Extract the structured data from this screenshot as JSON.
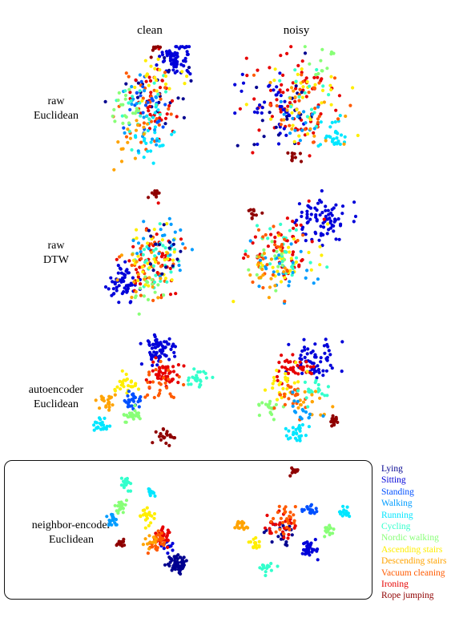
{
  "columns": [
    "clean",
    "noisy"
  ],
  "rows": [
    {
      "line1": "raw",
      "line2": "Euclidean"
    },
    {
      "line1": "raw",
      "line2": "DTW"
    },
    {
      "line1": "autoencoder",
      "line2": "Euclidean"
    },
    {
      "line1": "neighbor-encoder",
      "line2": "Euclidean"
    }
  ],
  "legend": [
    {
      "label": "Lying",
      "color": "#00008f"
    },
    {
      "label": "Sitting",
      "color": "#0000d9"
    },
    {
      "label": "Standing",
      "color": "#0050ff"
    },
    {
      "label": "Walking",
      "color": "#009cff"
    },
    {
      "label": "Running",
      "color": "#00e6ff"
    },
    {
      "label": "Cycling",
      "color": "#33ffcc"
    },
    {
      "label": "Nordic walking",
      "color": "#88ff77"
    },
    {
      "label": "Ascending stairs",
      "color": "#ffee00"
    },
    {
      "label": "Descending stairs",
      "color": "#ffa300"
    },
    {
      "label": "Vacuum cleaning",
      "color": "#ff5a00"
    },
    {
      "label": "Ironing",
      "color": "#e60000"
    },
    {
      "label": "Rope jumping",
      "color": "#8f0000"
    }
  ],
  "chart_data": {
    "type": "scatter",
    "description_of_encoding": "Grid of 2D embedding scatter plots; each point is a time series colored by activity class. Axes unlabeled and untick-marked.",
    "grid": false,
    "legend_position": "right",
    "highlighted_row": "neighbor-encoder Euclidean",
    "panels": [
      {
        "row": "raw Euclidean",
        "column": "clean",
        "clusters": [
          {
            "cls": 1,
            "cx": 0.7,
            "cy": 0.12,
            "r": 0.16,
            "n": 70
          },
          {
            "cls": 0,
            "cx": 0.5,
            "cy": 0.4,
            "r": 0.3,
            "n": 25
          },
          {
            "cls": 10,
            "cx": 0.48,
            "cy": 0.45,
            "r": 0.3,
            "n": 40
          },
          {
            "cls": 9,
            "cx": 0.4,
            "cy": 0.5,
            "r": 0.32,
            "n": 30
          },
          {
            "cls": 4,
            "cx": 0.5,
            "cy": 0.72,
            "r": 0.2,
            "n": 30
          },
          {
            "cls": 2,
            "cx": 0.45,
            "cy": 0.45,
            "r": 0.3,
            "n": 20
          },
          {
            "cls": 3,
            "cx": 0.35,
            "cy": 0.55,
            "r": 0.3,
            "n": 20
          },
          {
            "cls": 5,
            "cx": 0.35,
            "cy": 0.45,
            "r": 0.28,
            "n": 20
          },
          {
            "cls": 6,
            "cx": 0.25,
            "cy": 0.5,
            "r": 0.2,
            "n": 20
          },
          {
            "cls": 7,
            "cx": 0.55,
            "cy": 0.3,
            "r": 0.25,
            "n": 20
          },
          {
            "cls": 8,
            "cx": 0.3,
            "cy": 0.75,
            "r": 0.22,
            "n": 15
          },
          {
            "cls": 11,
            "cx": 0.5,
            "cy": 0.05,
            "r": 0.06,
            "n": 8
          }
        ]
      },
      {
        "row": "raw Euclidean",
        "column": "noisy",
        "clusters": [
          {
            "cls": 10,
            "cx": 0.5,
            "cy": 0.45,
            "r": 0.4,
            "n": 70
          },
          {
            "cls": 1,
            "cx": 0.3,
            "cy": 0.5,
            "r": 0.3,
            "n": 40
          },
          {
            "cls": 0,
            "cx": 0.4,
            "cy": 0.55,
            "r": 0.3,
            "n": 20
          },
          {
            "cls": 4,
            "cx": 0.8,
            "cy": 0.72,
            "r": 0.14,
            "n": 30
          },
          {
            "cls": 7,
            "cx": 0.6,
            "cy": 0.45,
            "r": 0.35,
            "n": 30
          },
          {
            "cls": 9,
            "cx": 0.5,
            "cy": 0.5,
            "r": 0.38,
            "n": 25
          },
          {
            "cls": 5,
            "cx": 0.55,
            "cy": 0.4,
            "r": 0.3,
            "n": 15
          },
          {
            "cls": 3,
            "cx": 0.5,
            "cy": 0.6,
            "r": 0.3,
            "n": 15
          },
          {
            "cls": 6,
            "cx": 0.65,
            "cy": 0.1,
            "r": 0.15,
            "n": 12
          },
          {
            "cls": 8,
            "cx": 0.55,
            "cy": 0.5,
            "r": 0.38,
            "n": 15
          },
          {
            "cls": 11,
            "cx": 0.5,
            "cy": 0.88,
            "r": 0.08,
            "n": 10
          }
        ]
      },
      {
        "row": "raw DTW",
        "column": "clean",
        "clusters": [
          {
            "cls": 1,
            "cx": 0.2,
            "cy": 0.75,
            "r": 0.16,
            "n": 60
          },
          {
            "cls": 10,
            "cx": 0.5,
            "cy": 0.55,
            "r": 0.3,
            "n": 45
          },
          {
            "cls": 9,
            "cx": 0.45,
            "cy": 0.6,
            "r": 0.3,
            "n": 30
          },
          {
            "cls": 5,
            "cx": 0.55,
            "cy": 0.55,
            "r": 0.28,
            "n": 30
          },
          {
            "cls": 7,
            "cx": 0.5,
            "cy": 0.55,
            "r": 0.3,
            "n": 30
          },
          {
            "cls": 3,
            "cx": 0.6,
            "cy": 0.45,
            "r": 0.3,
            "n": 25
          },
          {
            "cls": 0,
            "cx": 0.6,
            "cy": 0.5,
            "r": 0.25,
            "n": 15
          },
          {
            "cls": 6,
            "cx": 0.4,
            "cy": 0.75,
            "r": 0.2,
            "n": 15
          },
          {
            "cls": 8,
            "cx": 0.45,
            "cy": 0.65,
            "r": 0.28,
            "n": 15
          },
          {
            "cls": 11,
            "cx": 0.5,
            "cy": 0.04,
            "r": 0.05,
            "n": 10
          }
        ]
      },
      {
        "row": "raw DTW",
        "column": "noisy",
        "clusters": [
          {
            "cls": 1,
            "cx": 0.72,
            "cy": 0.25,
            "r": 0.22,
            "n": 80
          },
          {
            "cls": 10,
            "cx": 0.4,
            "cy": 0.45,
            "r": 0.32,
            "n": 45
          },
          {
            "cls": 7,
            "cx": 0.45,
            "cy": 0.6,
            "r": 0.32,
            "n": 35
          },
          {
            "cls": 5,
            "cx": 0.45,
            "cy": 0.5,
            "r": 0.3,
            "n": 25
          },
          {
            "cls": 3,
            "cx": 0.4,
            "cy": 0.7,
            "r": 0.3,
            "n": 25
          },
          {
            "cls": 9,
            "cx": 0.35,
            "cy": 0.55,
            "r": 0.3,
            "n": 25
          },
          {
            "cls": 6,
            "cx": 0.3,
            "cy": 0.6,
            "r": 0.25,
            "n": 15
          },
          {
            "cls": 8,
            "cx": 0.3,
            "cy": 0.7,
            "r": 0.2,
            "n": 15
          },
          {
            "cls": 11,
            "cx": 0.2,
            "cy": 0.2,
            "r": 0.08,
            "n": 10
          }
        ]
      },
      {
        "row": "autoencoder Euclidean",
        "column": "clean",
        "clusters": [
          {
            "cls": 1,
            "cx": 0.55,
            "cy": 0.15,
            "r": 0.14,
            "n": 70
          },
          {
            "cls": 10,
            "cx": 0.6,
            "cy": 0.35,
            "r": 0.12,
            "n": 45
          },
          {
            "cls": 9,
            "cx": 0.55,
            "cy": 0.45,
            "r": 0.16,
            "n": 25
          },
          {
            "cls": 5,
            "cx": 0.85,
            "cy": 0.4,
            "r": 0.08,
            "n": 25
          },
          {
            "cls": 7,
            "cx": 0.3,
            "cy": 0.45,
            "r": 0.1,
            "n": 25
          },
          {
            "cls": 2,
            "cx": 0.35,
            "cy": 0.58,
            "r": 0.08,
            "n": 25
          },
          {
            "cls": 6,
            "cx": 0.35,
            "cy": 0.72,
            "r": 0.08,
            "n": 25
          },
          {
            "cls": 4,
            "cx": 0.1,
            "cy": 0.8,
            "r": 0.08,
            "n": 25
          },
          {
            "cls": 8,
            "cx": 0.15,
            "cy": 0.6,
            "r": 0.08,
            "n": 20
          },
          {
            "cls": 11,
            "cx": 0.6,
            "cy": 0.9,
            "r": 0.07,
            "n": 20
          }
        ]
      },
      {
        "row": "autoencoder Euclidean",
        "column": "noisy",
        "clusters": [
          {
            "cls": 1,
            "cx": 0.65,
            "cy": 0.2,
            "r": 0.22,
            "n": 60
          },
          {
            "cls": 10,
            "cx": 0.5,
            "cy": 0.3,
            "r": 0.16,
            "n": 40
          },
          {
            "cls": 7,
            "cx": 0.4,
            "cy": 0.4,
            "r": 0.2,
            "n": 25
          },
          {
            "cls": 6,
            "cx": 0.25,
            "cy": 0.65,
            "r": 0.1,
            "n": 20
          },
          {
            "cls": 4,
            "cx": 0.5,
            "cy": 0.85,
            "r": 0.1,
            "n": 25
          },
          {
            "cls": 9,
            "cx": 0.45,
            "cy": 0.55,
            "r": 0.18,
            "n": 25
          },
          {
            "cls": 5,
            "cx": 0.65,
            "cy": 0.5,
            "r": 0.15,
            "n": 20
          },
          {
            "cls": 8,
            "cx": 0.6,
            "cy": 0.6,
            "r": 0.15,
            "n": 15
          },
          {
            "cls": 3,
            "cx": 0.55,
            "cy": 0.65,
            "r": 0.15,
            "n": 15
          },
          {
            "cls": 11,
            "cx": 0.82,
            "cy": 0.75,
            "r": 0.06,
            "n": 18
          }
        ]
      },
      {
        "row": "neighbor-encoder Euclidean",
        "column": "clean",
        "clusters": [
          {
            "cls": 0,
            "cx": 0.75,
            "cy": 0.8,
            "r": 0.1,
            "n": 60
          },
          {
            "cls": 1,
            "cx": 0.65,
            "cy": 0.65,
            "r": 0.08,
            "n": 15
          },
          {
            "cls": 10,
            "cx": 0.6,
            "cy": 0.55,
            "r": 0.1,
            "n": 30
          },
          {
            "cls": 9,
            "cx": 0.55,
            "cy": 0.6,
            "r": 0.1,
            "n": 25
          },
          {
            "cls": 7,
            "cx": 0.45,
            "cy": 0.4,
            "r": 0.1,
            "n": 20
          },
          {
            "cls": 6,
            "cx": 0.2,
            "cy": 0.3,
            "r": 0.06,
            "n": 20
          },
          {
            "cls": 3,
            "cx": 0.12,
            "cy": 0.42,
            "r": 0.06,
            "n": 20
          },
          {
            "cls": 5,
            "cx": 0.25,
            "cy": 0.1,
            "r": 0.06,
            "n": 20
          },
          {
            "cls": 4,
            "cx": 0.48,
            "cy": 0.18,
            "r": 0.04,
            "n": 15
          },
          {
            "cls": 11,
            "cx": 0.2,
            "cy": 0.62,
            "r": 0.04,
            "n": 18
          },
          {
            "cls": 8,
            "cx": 0.5,
            "cy": 0.6,
            "r": 0.08,
            "n": 12
          }
        ]
      },
      {
        "row": "neighbor-encoder Euclidean",
        "column": "noisy",
        "clusters": [
          {
            "cls": 1,
            "cx": 0.6,
            "cy": 0.7,
            "r": 0.08,
            "n": 30
          },
          {
            "cls": 0,
            "cx": 0.4,
            "cy": 0.55,
            "r": 0.12,
            "n": 20
          },
          {
            "cls": 10,
            "cx": 0.38,
            "cy": 0.5,
            "r": 0.14,
            "n": 30
          },
          {
            "cls": 9,
            "cx": 0.4,
            "cy": 0.45,
            "r": 0.14,
            "n": 25
          },
          {
            "cls": 8,
            "cx": 0.1,
            "cy": 0.5,
            "r": 0.06,
            "n": 20
          },
          {
            "cls": 7,
            "cx": 0.2,
            "cy": 0.65,
            "r": 0.06,
            "n": 15
          },
          {
            "cls": 2,
            "cx": 0.6,
            "cy": 0.38,
            "r": 0.06,
            "n": 20
          },
          {
            "cls": 4,
            "cx": 0.85,
            "cy": 0.4,
            "r": 0.05,
            "n": 15
          },
          {
            "cls": 6,
            "cx": 0.75,
            "cy": 0.55,
            "r": 0.06,
            "n": 15
          },
          {
            "cls": 5,
            "cx": 0.28,
            "cy": 0.85,
            "r": 0.06,
            "n": 18
          },
          {
            "cls": 11,
            "cx": 0.48,
            "cy": 0.05,
            "r": 0.04,
            "n": 12
          }
        ]
      }
    ]
  }
}
